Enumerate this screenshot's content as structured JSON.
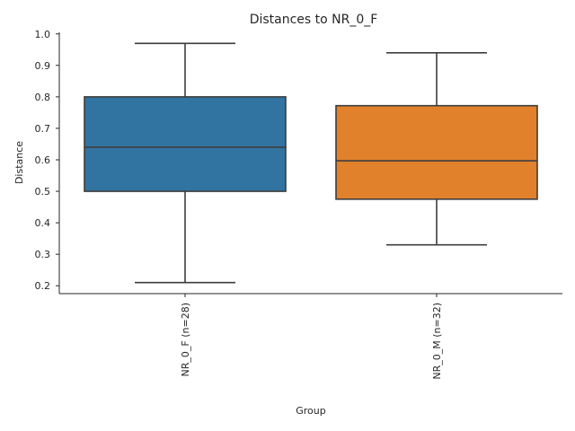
{
  "chart_data": {
    "type": "box",
    "title": "Distances to NR_0_F",
    "xlabel": "Group",
    "ylabel": "Distance",
    "ylim": [
      0.175,
      1.005
    ],
    "yticks": [
      0.2,
      0.3,
      0.4,
      0.5,
      0.6,
      0.7,
      0.8,
      0.9,
      1.0
    ],
    "ytick_labels": [
      "0.2",
      "0.3",
      "0.4",
      "0.5",
      "0.6",
      "0.7",
      "0.8",
      "0.9",
      "1.0"
    ],
    "grid": false,
    "categories": [
      "NR_0_F (n=28)",
      "NR_0_M (n=32)"
    ],
    "boxes": [
      {
        "category": "NR_0_F (n=28)",
        "whisker_low": 0.21,
        "q1": 0.5,
        "median": 0.64,
        "q3": 0.8,
        "whisker_high": 0.97,
        "color": "#3274a1"
      },
      {
        "category": "NR_0_M (n=32)",
        "whisker_low": 0.33,
        "q1": 0.475,
        "median": 0.597,
        "q3": 0.772,
        "whisker_high": 0.94,
        "color": "#e1812c"
      }
    ],
    "edge_color": "#3d3d3d"
  }
}
